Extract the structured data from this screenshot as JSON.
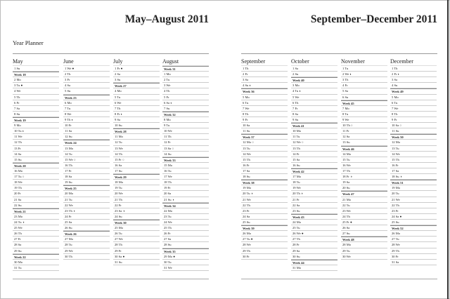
{
  "pages": [
    {
      "title": "May–August 2011",
      "subtitle": "Year Planner",
      "months": [
        {
          "name": "May",
          "rows": [
            "1 Su",
            "Week 18",
            "2 Mo",
            "3 Tu ●",
            "4 We",
            "5 Th",
            "6 Fr",
            "7 Sa",
            "8 Su",
            "Week 19",
            "9 Mo",
            "10 Tu ◐",
            "11 We",
            "12 Th",
            "13 Fr",
            "14 Sa",
            "15 Su",
            "Week 20",
            "16 Mo",
            "17 Tu ○",
            "18 We",
            "19 Th",
            "20 Fr",
            "21 Sa",
            "22 Su",
            "Week 21",
            "23 Mo",
            "24 Tu ◑",
            "25 We",
            "26 Th",
            "27 Fr",
            "28 Sa",
            "29 Su",
            "Week 22",
            "30 Mo",
            "31 Tu"
          ]
        },
        {
          "name": "June",
          "rows": [
            "1 We ●",
            "2 Th",
            "3 Fr",
            "4 Sa",
            "5 Su",
            "Week 23",
            "6 Mo",
            "7 Tu",
            "8 We",
            "9 Th ◐",
            "10 Fr",
            "11 Sa",
            "12 Su",
            "Week 24",
            "13 Mo",
            "14 Tu",
            "15 We ○",
            "16 Th",
            "17 Fr",
            "18 Sa",
            "19 Su",
            "Week 25",
            "20 Mo",
            "21 Tu",
            "22 We",
            "23 Th ◑",
            "24 Fr",
            "25 Sa",
            "26 Su",
            "Week 26",
            "27 Mo",
            "28 Tu",
            "29 We",
            "30 Th"
          ]
        },
        {
          "name": "July",
          "rows": [
            "1 Fr ●",
            "2 Sa",
            "3 Su",
            "Week 27",
            "4 Mo",
            "5 Tu",
            "6 We",
            "7 Th",
            "8 Fr ◐",
            "9 Sa",
            "10 Su",
            "Week 28",
            "11 Mo",
            "12 Tu",
            "13 We",
            "14 Th",
            "15 Fr ○",
            "16 Sa",
            "17 Su",
            "Week 29",
            "18 Mo",
            "19 Tu",
            "20 We",
            "21 Th",
            "22 Fr",
            "23 Sa ◑",
            "24 Su",
            "Week 30",
            "25 Mo",
            "26 Tu",
            "27 We",
            "28 Th",
            "29 Fr",
            "30 Sa ●",
            "31 Su"
          ]
        },
        {
          "name": "August",
          "rows": [
            "Week 31",
            "1 Mo",
            "2 Tu",
            "3 We",
            "4 Th",
            "5 Fr",
            "6 Sa ◐",
            "7 Su",
            "Week 32",
            "8 Mo",
            "9 Tu",
            "10 We",
            "11 Th",
            "12 Fr",
            "13 Sa ○",
            "14 Su",
            "Week 33",
            "15 Mo",
            "16 Tu",
            "17 We",
            "18 Th",
            "19 Fr",
            "20 Sa",
            "21 Su ◑",
            "Week 34",
            "22 Mo",
            "23 Tu",
            "24 We",
            "25 Th",
            "26 Fr",
            "27 Sa",
            "28 Su",
            "Week 35",
            "29 Mo ●",
            "30 Tu",
            "31 We"
          ]
        }
      ]
    },
    {
      "title": "September–December 2011",
      "months": [
        {
          "name": "September",
          "rows": [
            "1 Th",
            "2 Fr",
            "3 Sa",
            "4 Su ◐",
            "Week 36",
            "5 Mo",
            "6 Tu",
            "7 We",
            "8 Th",
            "9 Fr",
            "10 Sa",
            "11 Su",
            "Week 37",
            "12 Mo ○",
            "13 Tu",
            "14 We",
            "15 Th",
            "16 Fr",
            "17 Sa",
            "18 Su",
            "Week 38",
            "19 Mo",
            "20 Tu ◑",
            "21 We",
            "22 Th",
            "23 Fr",
            "24 Sa",
            "25 Su",
            "Week 39",
            "26 Mo",
            "27 Tu ●",
            "28 We",
            "29 Th",
            "30 Fr"
          ]
        },
        {
          "name": "October",
          "rows": [
            "1 Sa",
            "2 Su",
            "Week 40",
            "3 Mo",
            "4 Tu ◐",
            "5 We",
            "6 Th",
            "7 Fr",
            "8 Sa",
            "9 Su",
            "Week 41",
            "10 Mo",
            "11 Tu",
            "12 We ○",
            "13 Th",
            "14 Fr",
            "15 Sa",
            "16 Su",
            "Week 42",
            "17 Mo",
            "18 Tu",
            "19 We",
            "20 Th ◑",
            "21 Fr",
            "22 Sa",
            "23 Su",
            "Week 43",
            "24 Mo",
            "25 Tu",
            "26 We ●",
            "27 Th",
            "28 Fr",
            "29 Sa",
            "30 Su",
            "Week 44",
            "31 Mo"
          ]
        },
        {
          "name": "November",
          "rows": [
            "1 Tu",
            "2 We ◐",
            "3 Th",
            "4 Fr",
            "5 Sa",
            "6 Su",
            "Week 45",
            "7 Mo",
            "8 Tu",
            "9 We",
            "10 Th ○",
            "11 Fr",
            "12 Sa",
            "13 Su",
            "Week 46",
            "14 Mo",
            "15 Tu",
            "16 We",
            "17 Th",
            "18 Fr ◑",
            "19 Sa",
            "20 Su",
            "Week 47",
            "21 Mo",
            "22 Tu",
            "23 We",
            "24 Th",
            "25 Fr ●",
            "26 Sa",
            "27 Su",
            "Week 48",
            "28 Mo",
            "29 Tu",
            "30 We"
          ]
        },
        {
          "name": "December",
          "rows": [
            "1 Th",
            "2 Fr ◐",
            "3 Sa",
            "4 Su",
            "Week 49",
            "5 Mo",
            "6 Tu",
            "7 We",
            "8 Th",
            "9 Fr",
            "10 Sa ○",
            "11 Su",
            "Week 50",
            "12 Mo",
            "13 Tu",
            "14 We",
            "15 Th",
            "16 Fr",
            "17 Sa",
            "18 Su ◑",
            "Week 51",
            "19 Mo",
            "20 Tu",
            "21 We",
            "22 Th",
            "23 Fr",
            "24 Sa ●",
            "25 Su",
            "Week 52",
            "26 Mo",
            "27 Tu",
            "28 We",
            "29 Th",
            "30 Fr",
            "31 Sa"
          ]
        }
      ]
    }
  ]
}
